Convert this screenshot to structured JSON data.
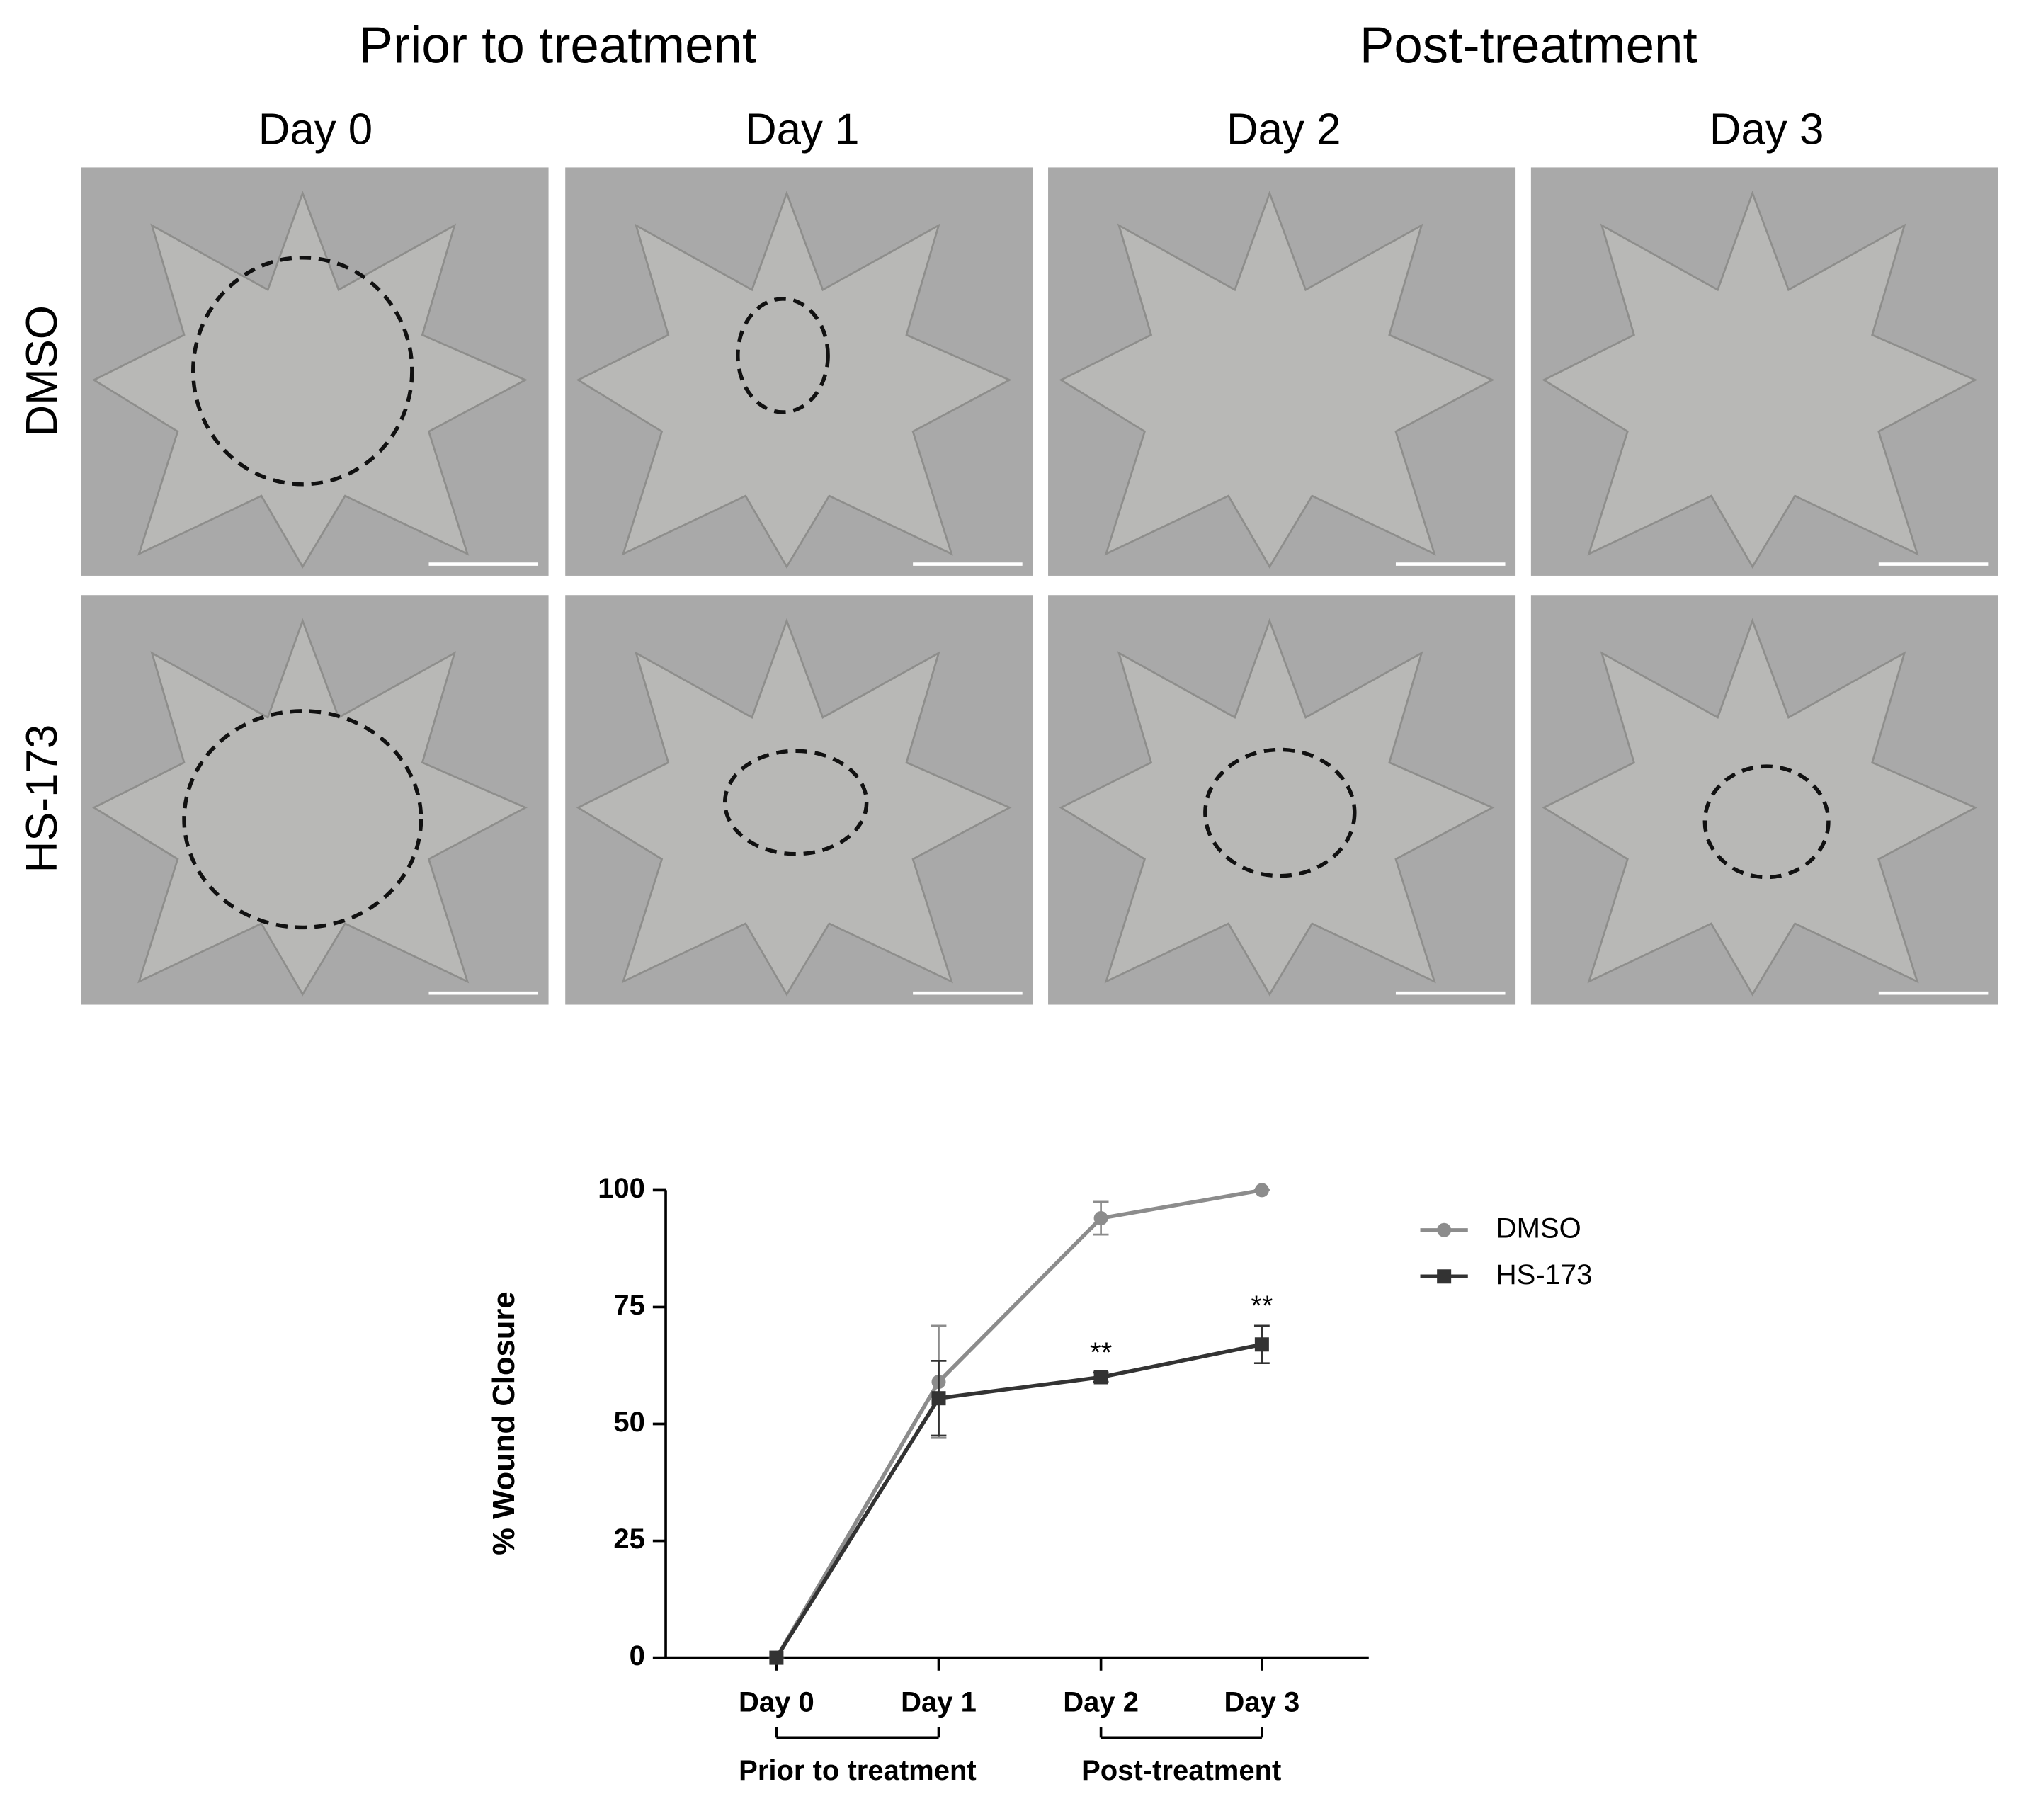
{
  "panels": {
    "groups": [
      "Prior to treatment",
      "Post-treatment"
    ],
    "days": [
      "Day 0",
      "Day 1",
      "Day 2",
      "Day 3"
    ],
    "rows": [
      "DMSO",
      "HS-173"
    ]
  },
  "chart_data": {
    "type": "line",
    "y_label": "% Wound Closure",
    "categories": [
      "Day 0",
      "Day 1",
      "Day 2",
      "Day 3"
    ],
    "series": [
      {
        "name": "DMSO",
        "color": "#8c8c8c",
        "marker": "circle",
        "values": [
          0,
          59,
          94,
          100
        ],
        "errors": [
          0,
          12,
          3.5,
          0
        ]
      },
      {
        "name": "HS-173",
        "color": "#333333",
        "marker": "square",
        "values": [
          0,
          55.5,
          60,
          67
        ],
        "errors": [
          0,
          8,
          1,
          4
        ]
      }
    ],
    "annotations": [
      {
        "text": "**",
        "category": 2,
        "series": 1
      },
      {
        "text": "**",
        "category": 3,
        "series": 1
      }
    ],
    "category_groups": [
      {
        "label": "Prior to treatment",
        "from": 0,
        "to": 1
      },
      {
        "label": "Post-treatment",
        "from": 2,
        "to": 3
      }
    ],
    "ylim": [
      0,
      100
    ],
    "yticks": [
      0,
      25,
      50,
      75,
      100
    ],
    "legend": "right"
  }
}
